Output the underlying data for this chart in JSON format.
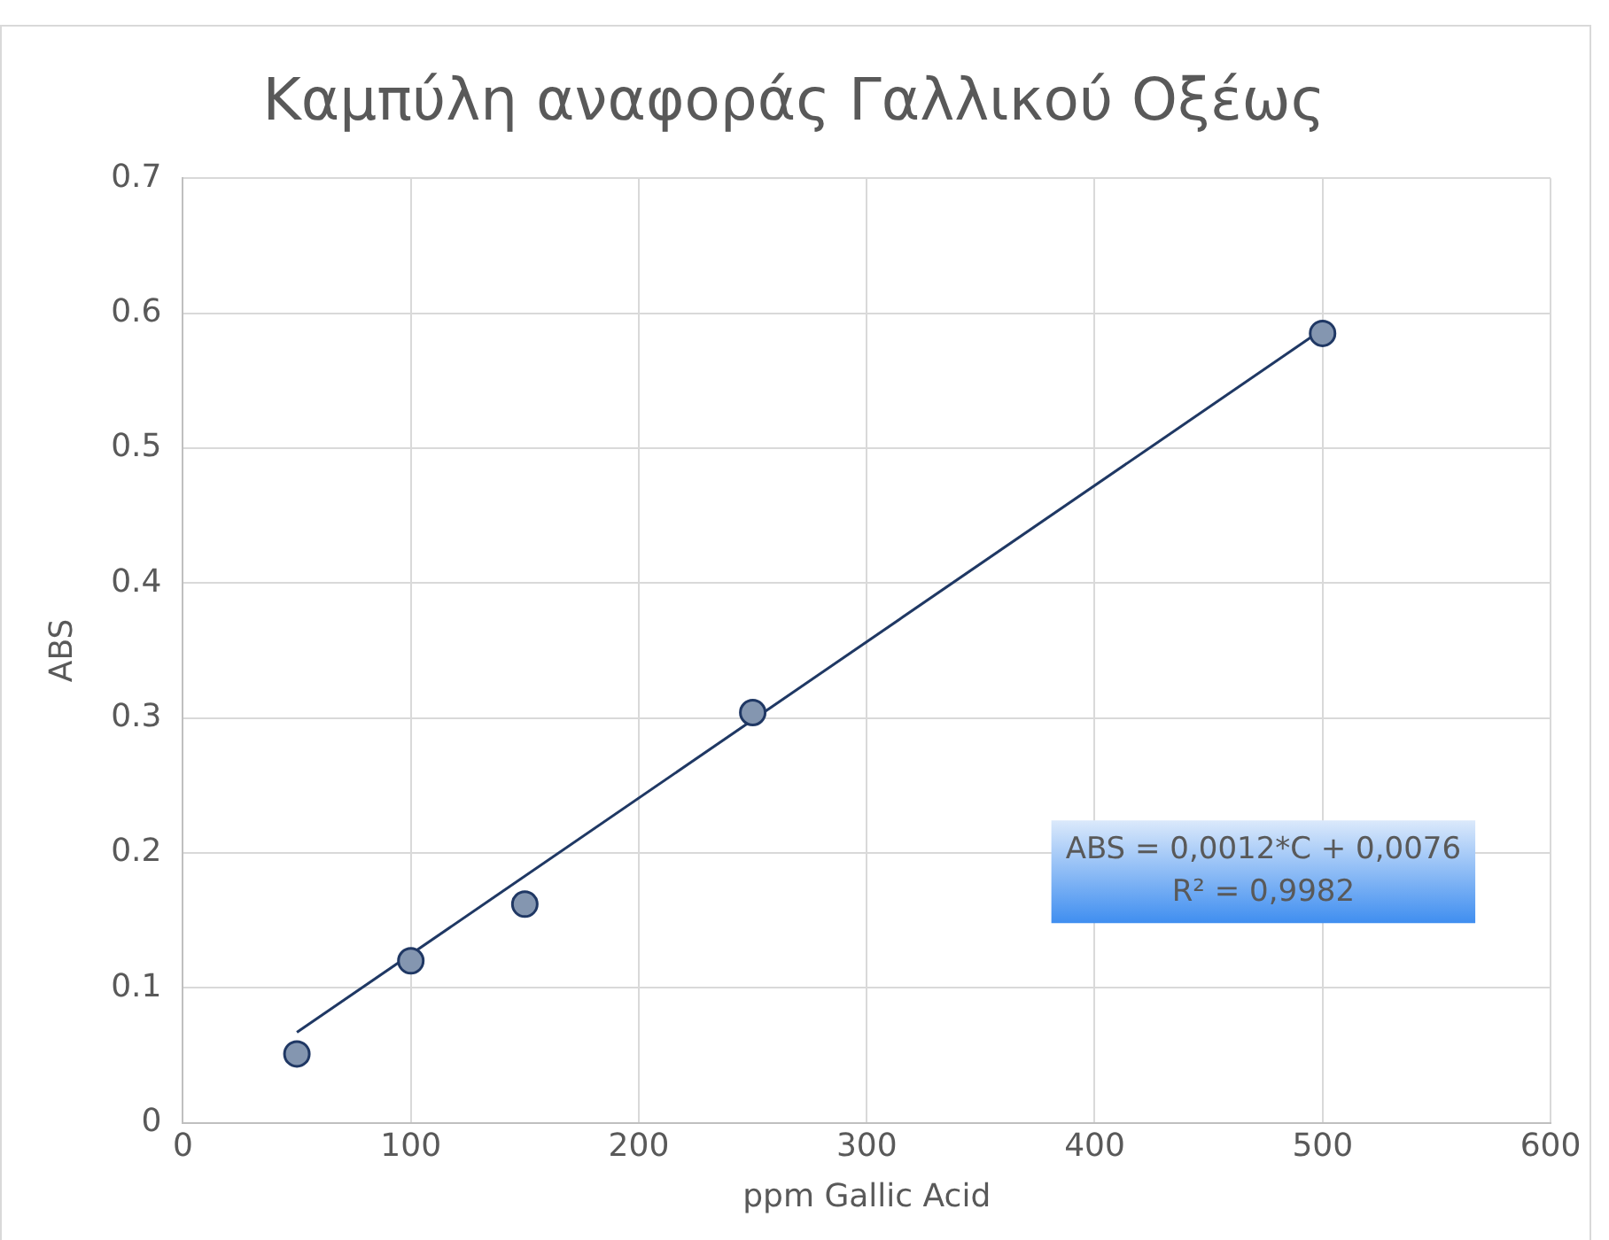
{
  "chart_data": {
    "type": "scatter",
    "title": "Καμπύλη αναφοράς Γαλλικού Οξέως",
    "xlabel": "ppm Gallic Acid",
    "ylabel": "ABS",
    "x": [
      50,
      100,
      150,
      250,
      500
    ],
    "series": [
      {
        "color": "#8496b0",
        "values": [
          0.051,
          0.12,
          0.162,
          0.304,
          0.585
        ]
      },
      {
        "type": "line",
        "color": "#1f3864",
        "marker": "none",
        "x": [
          50,
          500
        ],
        "values": [
          0.067,
          0.588
        ]
      }
    ],
    "xlim": [
      0,
      600
    ],
    "xticks": [
      0,
      100,
      200,
      300,
      400,
      500,
      600
    ],
    "ylim": [
      0,
      0.7
    ],
    "yticks": [
      0,
      0.1,
      0.2,
      0.3,
      0.4,
      0.5,
      0.6,
      0.7
    ],
    "grid": true,
    "legend": false,
    "marker": "circle",
    "line_style": "solid",
    "annotations": [
      "ABS = 0,0012*C + 0,0076",
      "R² = 0,9982"
    ]
  }
}
